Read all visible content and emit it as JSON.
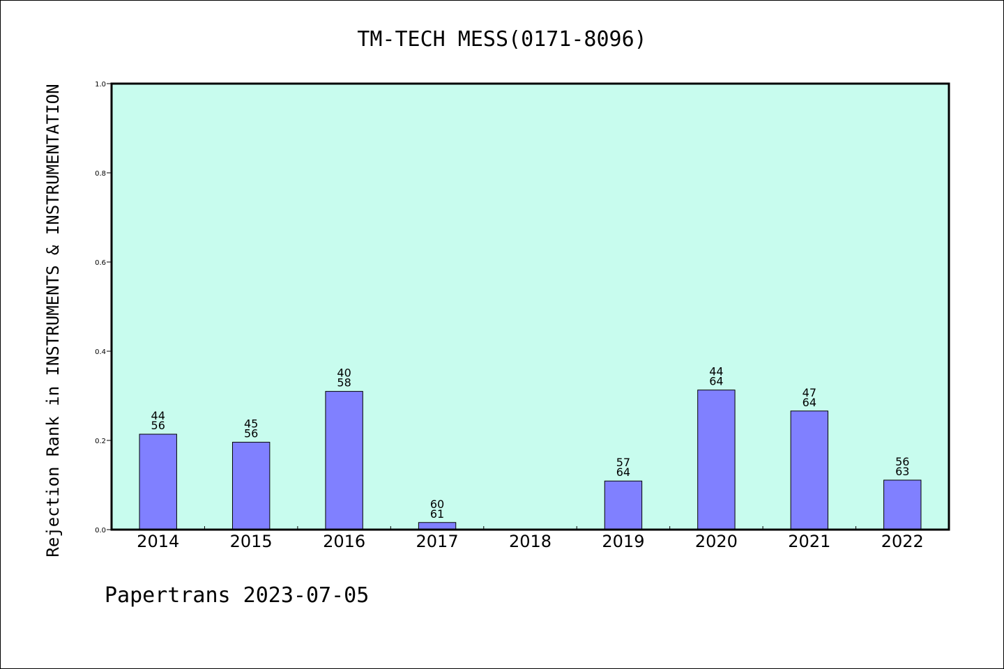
{
  "colors": {
    "plot_background": "#c8fcee",
    "bar_fill": "#8080ff",
    "bar_stroke": "#000000",
    "axis": "#000000"
  },
  "footer": "Papertrans 2023-07-05",
  "chart_data": {
    "type": "bar",
    "title": "TM-TECH MESS(0171-8096)",
    "xlabel": "",
    "ylabel": "Rejection Rank in INSTRUMENTS & INSTRUMENTATION",
    "ylim": [
      0,
      1.0
    ],
    "yticks": [
      "0.0",
      "0.2",
      "0.4",
      "0.6",
      "0.8",
      "1.0"
    ],
    "grid": false,
    "categories": [
      "2014",
      "2015",
      "2016",
      "2017",
      "2018",
      "2019",
      "2020",
      "2021",
      "2022"
    ],
    "values": [
      0.214,
      0.196,
      0.31,
      0.016,
      0,
      0.109,
      0.313,
      0.266,
      0.111
    ],
    "labels_top": [
      "44",
      "45",
      "40",
      "60",
      "",
      "57",
      "44",
      "47",
      "56"
    ],
    "labels_bottom": [
      "56",
      "56",
      "58",
      "61",
      "",
      "64",
      "64",
      "64",
      "63"
    ]
  }
}
